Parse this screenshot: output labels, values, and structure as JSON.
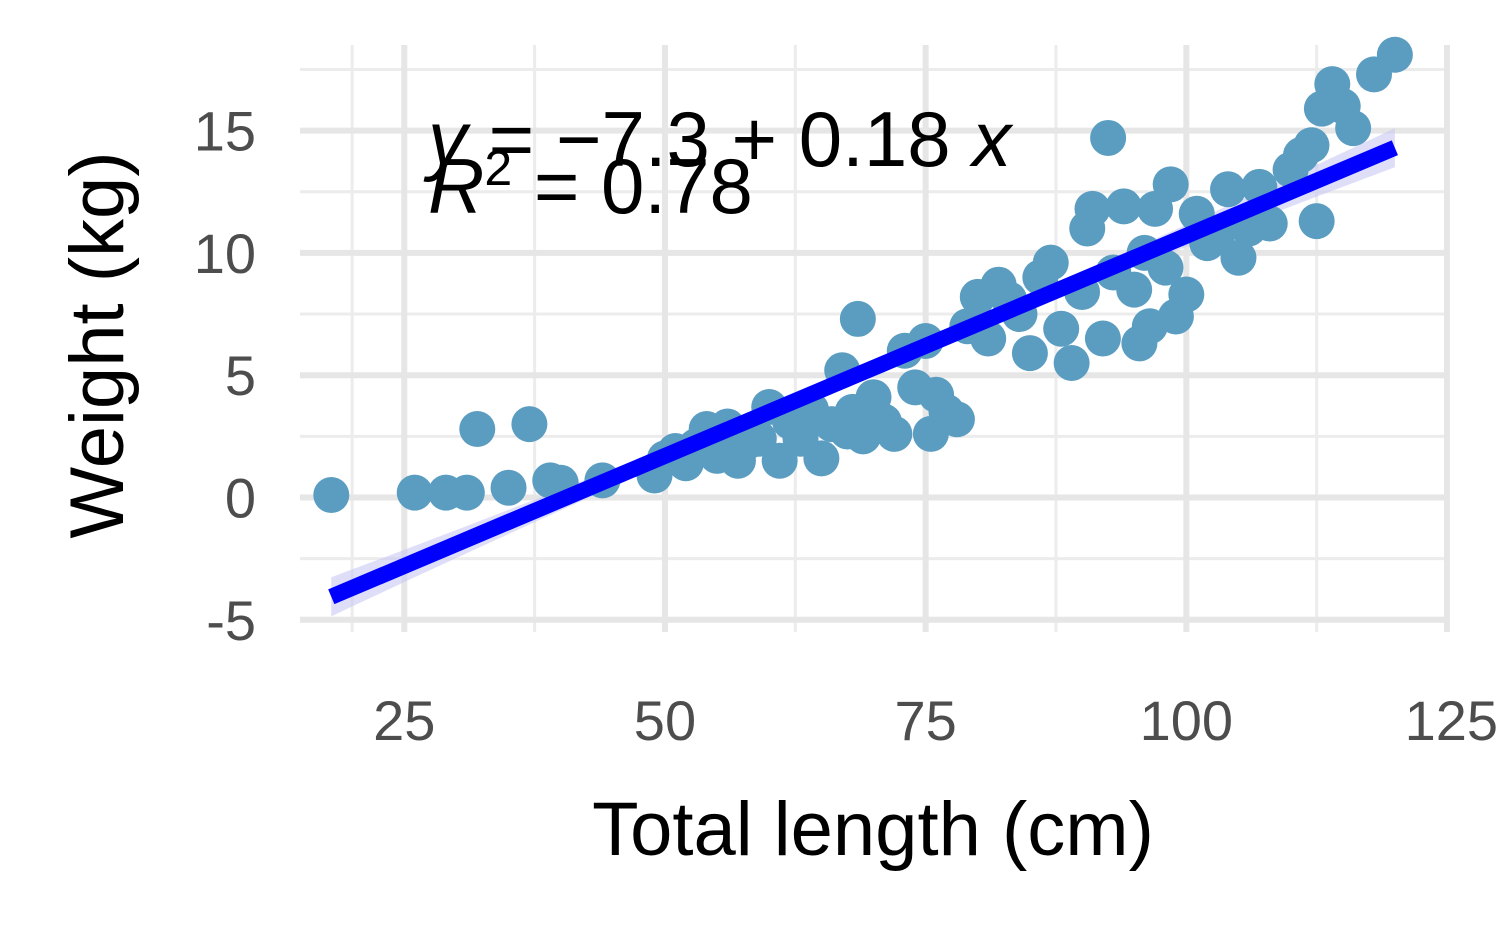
{
  "chart_data": {
    "type": "scatter",
    "title": "",
    "xlabel": "Total length (cm)",
    "ylabel": "Weight (kg)",
    "xlim": [
      15,
      125
    ],
    "ylim": [
      -5.5,
      18.5
    ],
    "x_ticks": [
      25,
      50,
      75,
      100,
      125
    ],
    "y_ticks": [
      -5,
      0,
      5,
      10,
      15
    ],
    "x_tick_labels": [
      "25",
      "50",
      "75",
      "100",
      "125"
    ],
    "y_tick_labels": [
      "-5",
      "0",
      "5",
      "10",
      "15"
    ],
    "grid": true,
    "legend": "none",
    "point_color": "#5b9dc1",
    "line_color": "#0000ff",
    "band_color": "#c8c8f5",
    "annotations": {
      "equation_y": "y",
      "equation_rest": " = −7.3 + 0.18 ",
      "equation_x": "x",
      "r2_r": "R",
      "r2_sup": "2",
      "r2_rest": " = 0.78"
    },
    "fit": {
      "intercept": -7.3,
      "slope": 0.18,
      "x_range": [
        18,
        120
      ]
    },
    "points": [
      [
        18,
        0.1
      ],
      [
        26,
        0.2
      ],
      [
        29,
        0.2
      ],
      [
        31,
        0.2
      ],
      [
        32,
        2.8
      ],
      [
        35,
        0.4
      ],
      [
        37,
        3.0
      ],
      [
        39,
        0.7
      ],
      [
        40,
        0.6
      ],
      [
        44,
        0.7
      ],
      [
        49,
        0.9
      ],
      [
        50,
        1.6
      ],
      [
        51,
        1.9
      ],
      [
        52,
        1.4
      ],
      [
        53,
        2.1
      ],
      [
        54,
        2.8
      ],
      [
        55,
        1.7
      ],
      [
        56,
        2.9
      ],
      [
        57,
        1.5
      ],
      [
        58,
        2.3
      ],
      [
        59,
        2.4
      ],
      [
        60,
        3.7
      ],
      [
        61,
        1.5
      ],
      [
        62,
        3.1
      ],
      [
        63,
        2.4
      ],
      [
        64,
        3.6
      ],
      [
        65,
        1.6
      ],
      [
        66,
        3.0
      ],
      [
        67,
        5.2
      ],
      [
        67.5,
        2.7
      ],
      [
        68,
        3.5
      ],
      [
        68.5,
        7.3
      ],
      [
        69,
        2.5
      ],
      [
        70,
        4.1
      ],
      [
        71,
        3.1
      ],
      [
        72,
        2.6
      ],
      [
        73,
        6.0
      ],
      [
        74,
        4.5
      ],
      [
        75,
        6.4
      ],
      [
        75.5,
        2.6
      ],
      [
        76,
        4.2
      ],
      [
        77,
        3.5
      ],
      [
        78,
        3.2
      ],
      [
        79,
        7.0
      ],
      [
        80,
        8.2
      ],
      [
        81,
        6.5
      ],
      [
        82,
        8.7
      ],
      [
        83,
        8.1
      ],
      [
        84,
        7.5
      ],
      [
        85,
        5.9
      ],
      [
        86,
        9.0
      ],
      [
        87,
        9.6
      ],
      [
        88,
        6.9
      ],
      [
        89,
        5.5
      ],
      [
        90,
        8.4
      ],
      [
        90.5,
        11.0
      ],
      [
        91,
        11.8
      ],
      [
        92,
        6.5
      ],
      [
        92.5,
        14.7
      ],
      [
        93,
        9.2
      ],
      [
        94,
        11.9
      ],
      [
        95,
        8.5
      ],
      [
        95.5,
        6.3
      ],
      [
        96,
        10.0
      ],
      [
        96.5,
        7.0
      ],
      [
        97,
        11.8
      ],
      [
        98,
        9.4
      ],
      [
        98.5,
        12.8
      ],
      [
        99,
        7.4
      ],
      [
        100,
        8.3
      ],
      [
        101,
        11.6
      ],
      [
        102,
        10.4
      ],
      [
        103,
        10.8
      ],
      [
        104,
        12.6
      ],
      [
        105,
        9.8
      ],
      [
        106,
        11.0
      ],
      [
        107,
        12.7
      ],
      [
        108,
        11.2
      ],
      [
        110,
        13.4
      ],
      [
        111,
        14.0
      ],
      [
        112,
        14.4
      ],
      [
        112.5,
        11.3
      ],
      [
        113,
        15.9
      ],
      [
        114,
        16.9
      ],
      [
        115,
        16.0
      ],
      [
        116,
        15.1
      ],
      [
        118,
        17.3
      ],
      [
        120,
        18.1
      ]
    ]
  }
}
